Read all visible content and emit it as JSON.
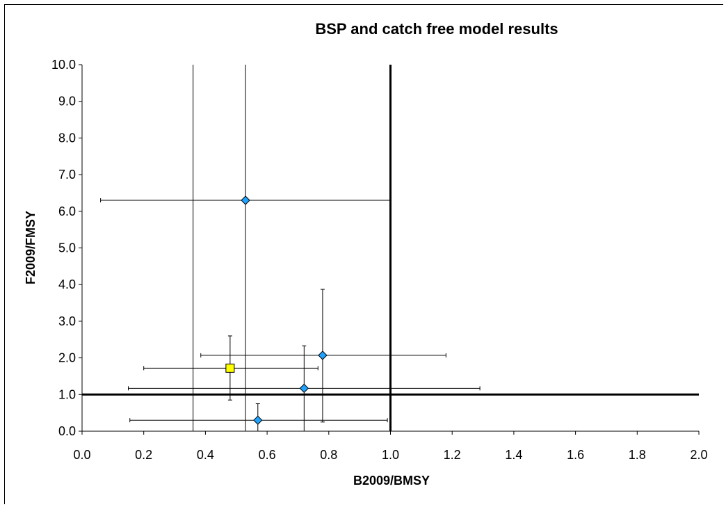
{
  "chart_data": {
    "type": "scatter",
    "title": "BSP and catch free model results",
    "xlabel": "B2009/BMSY",
    "ylabel": "F2009/FMSY",
    "xlim": [
      0.0,
      2.0
    ],
    "ylim": [
      0.0,
      10.0
    ],
    "x_ticks": [
      "0.0",
      "0.2",
      "0.4",
      "0.6",
      "0.8",
      "1.0",
      "1.2",
      "1.4",
      "1.6",
      "1.8",
      "2.0"
    ],
    "y_ticks": [
      "0.0",
      "1.0",
      "2.0",
      "3.0",
      "4.0",
      "5.0",
      "6.0",
      "7.0",
      "8.0",
      "9.0",
      "10.0"
    ],
    "grid": false,
    "legend": "none",
    "reference_lines": {
      "x": 1.0,
      "y": 1.0
    },
    "series": [
      {
        "marker": "diamond",
        "color": "#1fa3ff",
        "points": [
          {
            "x": 0.53,
            "y": 6.3,
            "xerr": [
              0.06,
              1.0
            ],
            "yerr": [
              0.0,
              10.0
            ]
          },
          {
            "x": 0.78,
            "y": 2.07,
            "xerr": [
              0.385,
              1.18
            ],
            "yerr": [
              0.25,
              3.87
            ]
          },
          {
            "x": 0.72,
            "y": 1.17,
            "xerr": [
              0.15,
              1.29
            ],
            "yerr": [
              0.0,
              2.33
            ]
          },
          {
            "x": 0.57,
            "y": 0.3,
            "xerr": [
              0.155,
              0.99
            ],
            "yerr": [
              0.0,
              0.75
            ]
          }
        ]
      },
      {
        "marker": "square",
        "color": "#ffff00",
        "points": [
          {
            "x": 0.48,
            "y": 1.72,
            "xerr": [
              0.2,
              0.765
            ],
            "yerr": [
              0.85,
              2.6
            ]
          }
        ]
      }
    ],
    "extra_vertical_line": {
      "x": 0.36
    }
  }
}
